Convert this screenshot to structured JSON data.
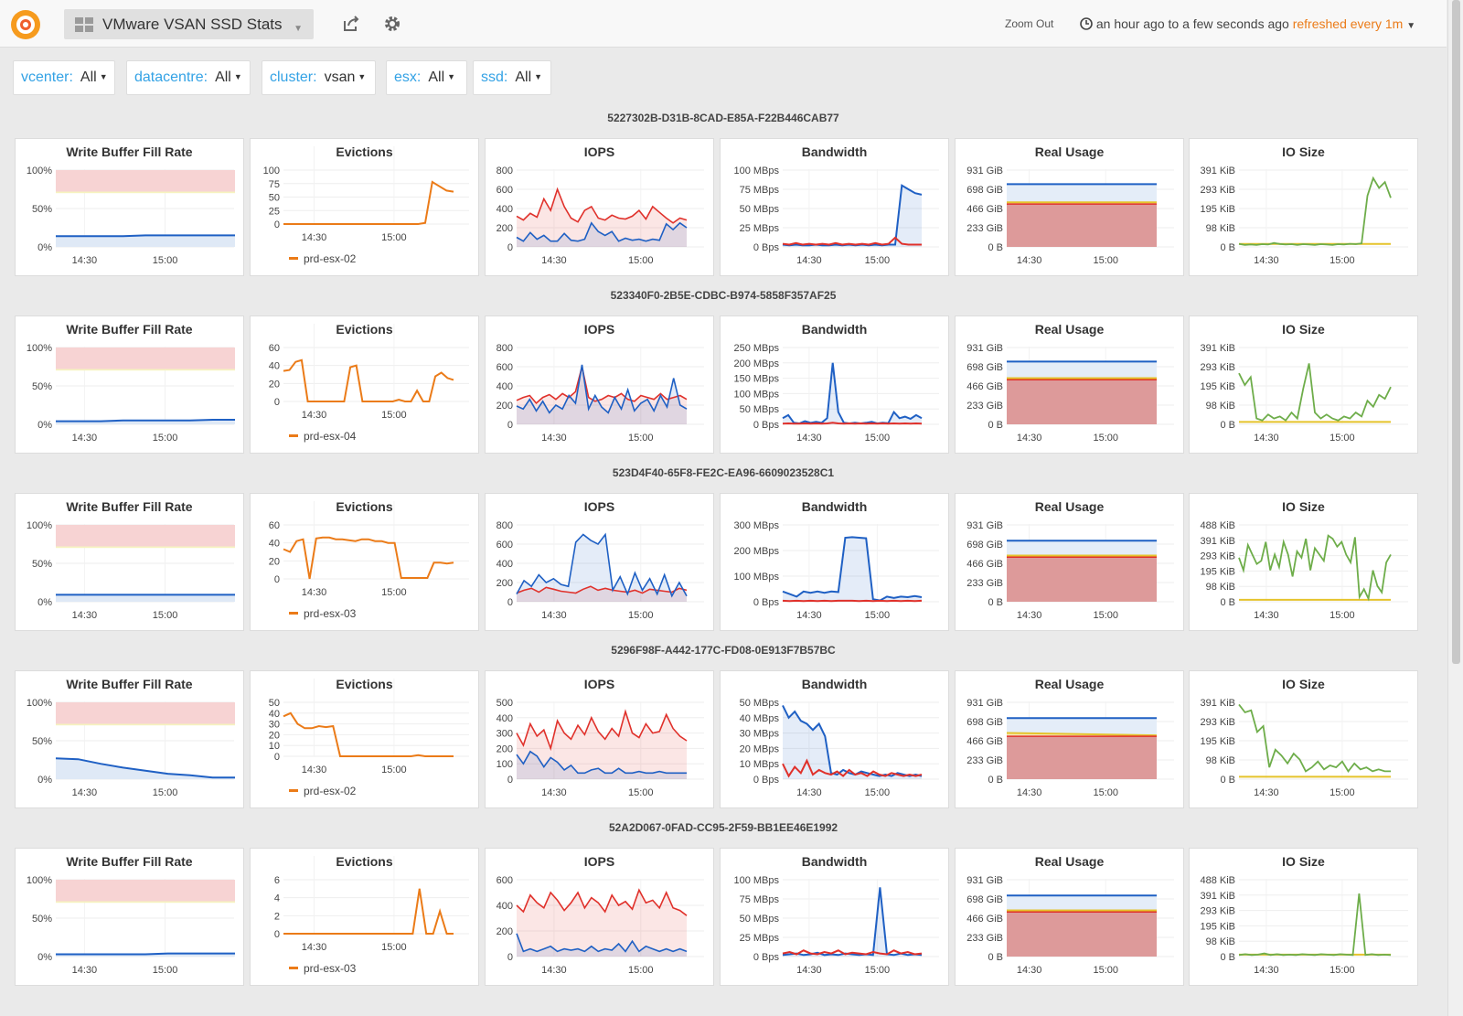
{
  "header": {
    "title": "VMware VSAN SSD Stats",
    "zoom_out": "Zoom Out",
    "time_range": "an hour ago to a few seconds ago",
    "refresh": "refreshed every 1m",
    "icons": [
      "grafana-logo-icon",
      "dashboard-grid-icon",
      "share-icon",
      "gear-icon",
      "clock-icon"
    ]
  },
  "variables": [
    {
      "label": "vcenter:",
      "value": "All"
    },
    {
      "label": "datacentre:",
      "value": "All"
    },
    {
      "label": "cluster:",
      "value": "vsan"
    },
    {
      "label": "esx:",
      "value": "All"
    },
    {
      "label": "ssd:",
      "value": "All"
    }
  ],
  "colors": {
    "blue": "#1f60c4",
    "red": "#e0312b",
    "orange": "#eb7b18",
    "green": "#6ead4a",
    "yellow": "#e5c32b",
    "threshold_red": "#f7d3d3",
    "threshold_yellow": "#f6f3bf"
  },
  "panel_titles": [
    "Write Buffer Fill Rate",
    "Evictions",
    "IOPS",
    "Bandwidth",
    "Real Usage",
    "IO Size"
  ],
  "x_ticks": [
    "14:30",
    "15:00"
  ],
  "rows": [
    {
      "title": "5227302B-D31B-8CAD-E85A-F22B446CAB77",
      "legend": "prd-esx-02",
      "wb_y": [
        "100%",
        "50%",
        "0%"
      ],
      "ev_y": [
        "100",
        "75",
        "50",
        "25",
        "0"
      ],
      "iops_y": [
        "800",
        "600",
        "400",
        "200",
        "0"
      ],
      "bw_y": [
        "100 MBps",
        "75 MBps",
        "50 MBps",
        "25 MBps",
        "0 Bps"
      ],
      "ru_y": [
        "931 GiB",
        "698 GiB",
        "466 GiB",
        "233 GiB",
        "0 B"
      ],
      "io_y": [
        "391 KiB",
        "293 KiB",
        "195 KiB",
        "98 KiB",
        "0 B"
      ]
    },
    {
      "title": "523340F0-2B5E-CDBC-B974-5858F357AF25",
      "legend": "prd-esx-04",
      "wb_y": [
        "100%",
        "50%",
        "0%"
      ],
      "ev_y": [
        "60",
        "40",
        "20",
        "0"
      ],
      "iops_y": [
        "800",
        "600",
        "400",
        "200",
        "0"
      ],
      "bw_y": [
        "250 MBps",
        "200 MBps",
        "150 MBps",
        "100 MBps",
        "50 MBps",
        "0 Bps"
      ],
      "ru_y": [
        "931 GiB",
        "698 GiB",
        "466 GiB",
        "233 GiB",
        "0 B"
      ],
      "io_y": [
        "391 KiB",
        "293 KiB",
        "195 KiB",
        "98 KiB",
        "0 B"
      ]
    },
    {
      "title": "523D4F40-65F8-FE2C-EA96-6609023528C1",
      "legend": "prd-esx-03",
      "wb_y": [
        "100%",
        "50%",
        "0%"
      ],
      "ev_y": [
        "60",
        "40",
        "20",
        "0"
      ],
      "iops_y": [
        "800",
        "600",
        "400",
        "200",
        "0"
      ],
      "bw_y": [
        "300 MBps",
        "200 MBps",
        "100 MBps",
        "0 Bps"
      ],
      "ru_y": [
        "931 GiB",
        "698 GiB",
        "466 GiB",
        "233 GiB",
        "0 B"
      ],
      "io_y": [
        "488 KiB",
        "391 KiB",
        "293 KiB",
        "195 KiB",
        "98 KiB",
        "0 B"
      ]
    },
    {
      "title": "5296F98F-A442-177C-FD08-0E913F7B57BC",
      "legend": "prd-esx-02",
      "wb_y": [
        "100%",
        "50%",
        "0%"
      ],
      "ev_y": [
        "50",
        "40",
        "30",
        "20",
        "10",
        "0"
      ],
      "iops_y": [
        "500",
        "400",
        "300",
        "200",
        "100",
        "0"
      ],
      "bw_y": [
        "50 MBps",
        "40 MBps",
        "30 MBps",
        "20 MBps",
        "10 MBps",
        "0 Bps"
      ],
      "ru_y": [
        "931 GiB",
        "698 GiB",
        "466 GiB",
        "233 GiB",
        "0 B"
      ],
      "io_y": [
        "391 KiB",
        "293 KiB",
        "195 KiB",
        "98 KiB",
        "0 B"
      ]
    },
    {
      "title": "52A2D067-0FAD-CC95-2F59-BB1EE46E1992",
      "legend": "prd-esx-03",
      "wb_y": [
        "100%",
        "50%",
        "0%"
      ],
      "ev_y": [
        "6",
        "4",
        "2",
        "0"
      ],
      "iops_y": [
        "600",
        "400",
        "200",
        "0"
      ],
      "bw_y": [
        "100 MBps",
        "75 MBps",
        "50 MBps",
        "25 MBps",
        "0 Bps"
      ],
      "ru_y": [
        "931 GiB",
        "698 GiB",
        "466 GiB",
        "233 GiB",
        "0 B"
      ],
      "io_y": [
        "488 KiB",
        "391 KiB",
        "293 KiB",
        "195 KiB",
        "98 KiB",
        "0 B"
      ]
    }
  ],
  "series": {
    "write_buffer_fill_pct": [
      [
        14,
        14,
        14,
        14,
        15,
        15,
        15,
        15,
        15
      ],
      [
        4,
        4,
        4,
        5,
        5,
        5,
        5,
        6,
        6
      ],
      [
        9,
        9,
        9,
        9,
        9,
        9,
        9,
        9,
        9
      ],
      [
        27,
        26,
        20,
        15,
        11,
        7,
        5,
        2,
        2
      ],
      [
        3,
        3,
        3,
        3,
        3,
        4,
        4,
        4,
        4
      ]
    ],
    "evictions": [
      [
        0,
        0,
        0,
        0,
        0,
        0,
        0,
        0,
        0,
        0,
        0,
        0,
        0,
        0,
        0,
        0,
        0,
        0,
        0,
        0,
        2,
        78,
        70,
        62,
        60
      ],
      [
        34,
        35,
        44,
        46,
        0,
        0,
        0,
        0,
        0,
        0,
        0,
        38,
        40,
        0,
        0,
        0,
        0,
        0,
        0,
        2,
        0,
        0,
        12,
        0,
        0,
        28,
        32,
        26,
        24
      ],
      [
        33,
        30,
        42,
        44,
        0,
        45,
        46,
        46,
        44,
        44,
        43,
        42,
        44,
        44,
        42,
        42,
        40,
        40,
        1,
        1,
        1,
        1,
        1,
        18,
        18,
        17,
        18
      ],
      [
        37,
        40,
        30,
        26,
        26,
        28,
        27,
        28,
        0,
        0,
        0,
        0,
        0,
        0,
        0,
        0,
        0,
        0,
        0,
        1,
        0,
        0,
        0,
        0,
        0
      ],
      [
        0,
        0,
        0,
        0,
        0,
        0,
        0,
        0,
        0,
        0,
        0,
        0,
        0,
        0,
        0,
        0,
        0,
        0,
        0,
        0,
        5,
        0,
        0,
        2.5,
        0,
        0
      ]
    ],
    "iops_red": [
      [
        320,
        280,
        350,
        310,
        500,
        380,
        600,
        420,
        300,
        260,
        380,
        420,
        300,
        280,
        330,
        300,
        290,
        320,
        380,
        290,
        420,
        360,
        300,
        250,
        300,
        280
      ],
      [
        250,
        280,
        300,
        220,
        280,
        310,
        260,
        320,
        280,
        340,
        600,
        280,
        240,
        260,
        300,
        280,
        320,
        260,
        240,
        300,
        280,
        260,
        320,
        260,
        280,
        300,
        260
      ],
      [
        90,
        120,
        140,
        100,
        150,
        130,
        110,
        100,
        90,
        130,
        160,
        120,
        140,
        120,
        110,
        100,
        120,
        90,
        130,
        120,
        110,
        100,
        140,
        120
      ],
      [
        300,
        220,
        360,
        280,
        320,
        200,
        380,
        300,
        260,
        350,
        290,
        400,
        310,
        260,
        330,
        280,
        440,
        300,
        270,
        360,
        300,
        310,
        420,
        330,
        280,
        250
      ],
      [
        400,
        350,
        480,
        420,
        380,
        500,
        440,
        360,
        420,
        500,
        380,
        460,
        420,
        350,
        480,
        400,
        430,
        370,
        520,
        420,
        440,
        380,
        500,
        380,
        360,
        320
      ]
    ],
    "iops_blue": [
      [
        100,
        60,
        150,
        80,
        120,
        60,
        60,
        140,
        70,
        60,
        80,
        250,
        160,
        120,
        160,
        60,
        90,
        70,
        80,
        60,
        80,
        70,
        240,
        180,
        250,
        200
      ],
      [
        190,
        160,
        260,
        140,
        240,
        120,
        200,
        160,
        300,
        220,
        620,
        160,
        300,
        180,
        120,
        280,
        160,
        360,
        140,
        220,
        260,
        140,
        300,
        180,
        480,
        200,
        160
      ],
      [
        80,
        220,
        160,
        280,
        200,
        240,
        180,
        160,
        620,
        700,
        640,
        600,
        700,
        120,
        260,
        80,
        300,
        120,
        240,
        80,
        280,
        60,
        200,
        60
      ],
      [
        160,
        100,
        180,
        150,
        80,
        140,
        110,
        60,
        90,
        40,
        40,
        60,
        70,
        40,
        40,
        70,
        40,
        40,
        50,
        40,
        40,
        50,
        40,
        40,
        40,
        40
      ],
      [
        180,
        40,
        60,
        40,
        60,
        80,
        40,
        60,
        50,
        60,
        40,
        80,
        40,
        60,
        50,
        100,
        40,
        120,
        40,
        80,
        60,
        40,
        60,
        40,
        60,
        40
      ]
    ],
    "bw_blue": [
      [
        3,
        2,
        3,
        2,
        2,
        3,
        2,
        2,
        3,
        2,
        3,
        2,
        3,
        2,
        3,
        2,
        3,
        3,
        80,
        75,
        70,
        68
      ],
      [
        20,
        30,
        5,
        3,
        10,
        5,
        8,
        5,
        20,
        200,
        40,
        5,
        3,
        5,
        3,
        5,
        8,
        3,
        5,
        4,
        40,
        20,
        25,
        18,
        30,
        20
      ],
      [
        40,
        30,
        20,
        40,
        35,
        40,
        35,
        40,
        38,
        250,
        252,
        250,
        248,
        10,
        5,
        20,
        15,
        20,
        18,
        22,
        18
      ],
      [
        48,
        40,
        44,
        38,
        36,
        32,
        36,
        28,
        4,
        3,
        6,
        4,
        3,
        5,
        4,
        3,
        2,
        3,
        2,
        4,
        3,
        2,
        3,
        2
      ],
      [
        2,
        3,
        4,
        2,
        3,
        5,
        2,
        3,
        2,
        4,
        3,
        2,
        3,
        2,
        90,
        3,
        2,
        4,
        2,
        3,
        2
      ]
    ],
    "bw_red": [
      [
        4,
        3,
        5,
        3,
        4,
        3,
        4,
        3,
        5,
        3,
        4,
        3,
        4,
        3,
        5,
        3,
        4,
        12,
        4,
        3,
        3,
        3
      ],
      [
        2,
        3,
        2,
        2,
        3,
        2,
        3,
        2,
        3,
        5,
        3,
        2,
        3,
        2,
        3,
        2,
        3,
        2,
        3,
        2,
        3,
        2,
        3,
        2,
        3,
        2
      ],
      [
        4,
        3,
        4,
        3,
        4,
        3,
        4,
        3,
        4,
        4,
        4,
        3,
        4,
        3,
        4,
        3,
        4,
        3,
        4,
        3,
        4
      ],
      [
        10,
        2,
        8,
        4,
        12,
        3,
        6,
        4,
        3,
        5,
        2,
        6,
        3,
        4,
        2,
        5,
        3,
        2,
        4,
        3,
        2,
        3,
        2,
        3
      ],
      [
        4,
        6,
        3,
        8,
        4,
        3,
        6,
        4,
        8,
        3,
        5,
        4,
        3,
        6,
        4,
        3,
        8,
        4,
        6,
        3,
        4
      ]
    ],
    "real_usage_gib": [
      {
        "blue": 760,
        "yellow": 540,
        "red": 520
      },
      {
        "blue": 760,
        "yellow": 560,
        "red": 540
      },
      {
        "blue": 740,
        "yellow": 560,
        "red": 540
      },
      {
        "blue": 740,
        "yellow_start": 560,
        "yellow_end": 530,
        "red": 520
      },
      {
        "blue": 740,
        "yellow": 560,
        "red": 540
      }
    ],
    "io_green": [
      [
        15,
        10,
        12,
        10,
        14,
        12,
        20,
        15,
        12,
        14,
        10,
        14,
        12,
        10,
        14,
        12,
        10,
        14,
        12,
        16,
        14,
        18,
        260,
        350,
        300,
        330,
        250
      ],
      [
        260,
        200,
        240,
        30,
        20,
        50,
        30,
        40,
        20,
        60,
        30,
        180,
        310,
        60,
        30,
        50,
        30,
        20,
        40,
        30,
        60,
        40,
        120,
        90,
        150,
        130,
        190
      ],
      [
        280,
        200,
        360,
        300,
        240,
        260,
        380,
        200,
        300,
        220,
        380,
        300,
        160,
        320,
        280,
        400,
        200,
        340,
        300,
        260,
        420,
        400,
        350,
        380,
        300,
        250,
        410,
        30,
        80,
        20,
        200,
        100,
        60,
        250,
        300
      ],
      [
        380,
        340,
        350,
        240,
        270,
        60,
        150,
        120,
        80,
        130,
        100,
        40,
        60,
        90,
        50,
        70,
        60,
        90,
        40,
        80,
        50,
        60,
        40,
        50,
        40,
        40
      ],
      [
        10,
        15,
        10,
        12,
        20,
        10,
        15,
        10,
        12,
        10,
        15,
        12,
        10,
        15,
        12,
        10,
        15,
        12,
        10,
        400,
        10,
        15,
        10,
        12,
        10
      ]
    ],
    "io_yellow_kib": [
      15,
      12,
      12,
      12,
      12
    ]
  }
}
